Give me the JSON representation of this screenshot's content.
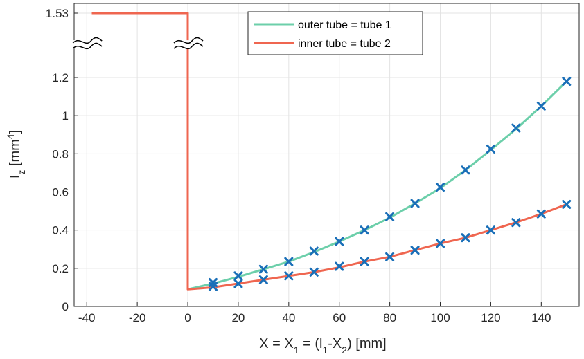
{
  "chart_data": {
    "type": "line",
    "xlabel": "X = X₁ = (l₁-X₂)   [mm]",
    "ylabel": "I_z [mm⁴]",
    "xlim": [
      -45,
      155
    ],
    "ylim": [
      0,
      1.53
    ],
    "grid": true,
    "legend_position": "top-center",
    "x_ticks": [
      -40,
      -20,
      0,
      20,
      40,
      60,
      80,
      100,
      120,
      140
    ],
    "x_tick_labels": [
      "-40",
      "-20",
      "0",
      "20",
      "40",
      "60",
      "80",
      "100",
      "120",
      "140"
    ],
    "y_ticks": [
      0,
      0.2,
      0.4,
      0.6,
      0.8,
      1,
      1.2,
      1.53
    ],
    "y_tick_labels": [
      "0",
      "0.2",
      "0.4",
      "0.6",
      "0.8",
      "1",
      "1.2",
      "1.53"
    ],
    "axis_break": {
      "y_value": 1.37,
      "at_x": [
        -40,
        0
      ]
    },
    "series": [
      {
        "name": "outer tube = tube 1",
        "color": "#6ccfaa",
        "line_x": [
          0,
          10,
          20,
          30,
          40,
          50,
          60,
          70,
          80,
          90,
          100,
          110,
          120,
          130,
          140,
          150
        ],
        "line_y": [
          0.09,
          0.12,
          0.155,
          0.195,
          0.235,
          0.285,
          0.34,
          0.4,
          0.465,
          0.54,
          0.62,
          0.715,
          0.82,
          0.93,
          1.05,
          1.18
        ]
      },
      {
        "name": "inner tube = tube 2",
        "color": "#ef6650",
        "line_x": [
          -38,
          0,
          0,
          10,
          20,
          30,
          40,
          50,
          60,
          70,
          80,
          90,
          100,
          110,
          120,
          130,
          140,
          150
        ],
        "line_y": [
          1.53,
          1.53,
          0.09,
          0.1,
          0.12,
          0.14,
          0.16,
          0.18,
          0.205,
          0.235,
          0.26,
          0.295,
          0.33,
          0.36,
          0.4,
          0.44,
          0.485,
          0.535
        ]
      }
    ],
    "markers": {
      "symbol": "x",
      "color": "#1a6fb8",
      "points": [
        [
          10,
          0.125
        ],
        [
          20,
          0.16
        ],
        [
          30,
          0.195
        ],
        [
          40,
          0.235
        ],
        [
          50,
          0.29
        ],
        [
          60,
          0.34
        ],
        [
          70,
          0.4
        ],
        [
          80,
          0.47
        ],
        [
          90,
          0.54
        ],
        [
          100,
          0.625
        ],
        [
          110,
          0.715
        ],
        [
          120,
          0.825
        ],
        [
          130,
          0.935
        ],
        [
          140,
          1.05
        ],
        [
          150,
          1.18
        ],
        [
          10,
          0.105
        ],
        [
          20,
          0.12
        ],
        [
          30,
          0.14
        ],
        [
          40,
          0.16
        ],
        [
          50,
          0.18
        ],
        [
          60,
          0.21
        ],
        [
          70,
          0.235
        ],
        [
          80,
          0.26
        ],
        [
          90,
          0.295
        ],
        [
          100,
          0.33
        ],
        [
          110,
          0.36
        ],
        [
          120,
          0.4
        ],
        [
          130,
          0.44
        ],
        [
          140,
          0.485
        ],
        [
          150,
          0.535
        ]
      ]
    }
  }
}
